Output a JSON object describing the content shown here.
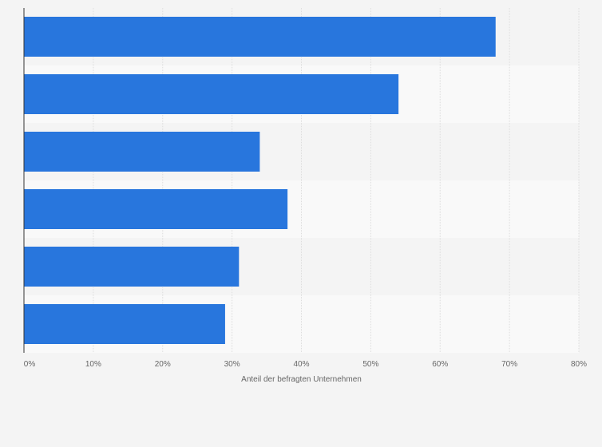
{
  "chart_data": {
    "type": "bar",
    "orientation": "horizontal",
    "categories": [
      "",
      "",
      "",
      "",
      "",
      ""
    ],
    "values": [
      68,
      54,
      34,
      38,
      31,
      29
    ],
    "xlabel": "Anteil der befragten Unternehmen",
    "ylabel": "",
    "xlim": [
      0,
      80
    ],
    "x_ticks": [
      0,
      10,
      20,
      30,
      40,
      50,
      60,
      70,
      80
    ],
    "x_tick_labels": [
      "0%",
      "10%",
      "20%",
      "30%",
      "40%",
      "50%",
      "60%",
      "70%",
      "80%"
    ],
    "grid": true,
    "legend": "none",
    "colors": {
      "bar": "#2876dd",
      "band_dark": "#f4f4f4",
      "band_light": "#f9f9f9",
      "gridline": "#dddddd",
      "axis": "#333333",
      "text": "#666666"
    }
  }
}
